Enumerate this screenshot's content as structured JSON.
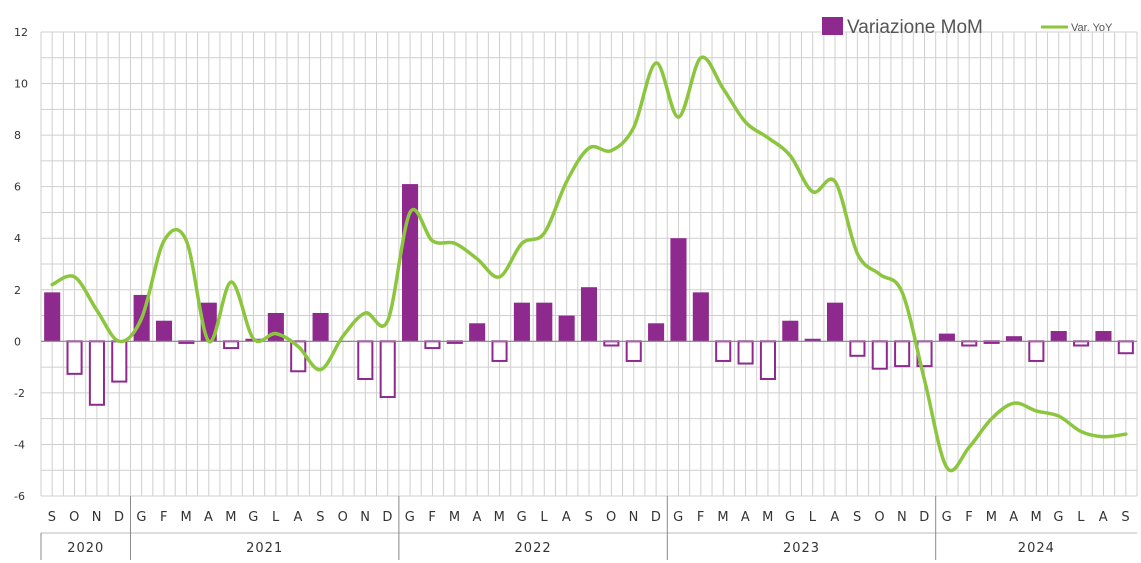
{
  "chart_data": {
    "type": "bar",
    "ylim": [
      -6,
      12
    ],
    "yticks": [
      12,
      10,
      8,
      6,
      4,
      2,
      0,
      -2,
      -4,
      -6
    ],
    "grid": true,
    "legend_position": "top-right",
    "categories": [
      "S",
      "O",
      "N",
      "D",
      "G",
      "F",
      "M",
      "A",
      "M",
      "G",
      "L",
      "A",
      "S",
      "O",
      "N",
      "D",
      "G",
      "F",
      "M",
      "A",
      "M",
      "G",
      "L",
      "A",
      "S",
      "O",
      "N",
      "D",
      "G",
      "F",
      "M",
      "A",
      "M",
      "G",
      "L",
      "A",
      "S",
      "O",
      "N",
      "D",
      "G",
      "F",
      "M",
      "A",
      "M",
      "G",
      "L",
      "A",
      "S"
    ],
    "years": [
      {
        "label": "2020",
        "count": 4
      },
      {
        "label": "2021",
        "count": 12
      },
      {
        "label": "2022",
        "count": 12
      },
      {
        "label": "2023",
        "count": 12
      },
      {
        "label": "2024",
        "count": 9
      }
    ],
    "series": [
      {
        "name": "Variazione MoM",
        "type": "bar",
        "color": "#8e2a8e",
        "values": [
          1.9,
          -1.3,
          -2.5,
          -1.6,
          1.8,
          0.8,
          -0.1,
          1.5,
          -0.3,
          0.1,
          1.1,
          -1.2,
          1.1,
          0.0,
          -1.5,
          -2.2,
          6.1,
          -0.3,
          -0.1,
          0.7,
          -0.8,
          1.5,
          1.5,
          1.0,
          2.1,
          -0.2,
          -0.8,
          0.7,
          4.0,
          1.9,
          -0.8,
          -0.9,
          -1.5,
          0.8,
          0.1,
          1.5,
          -0.6,
          -1.1,
          -1.0,
          -1.0,
          0.3,
          -0.2,
          -0.1,
          0.2,
          -0.8,
          0.4,
          -0.2,
          0.4,
          -0.5
        ]
      },
      {
        "name": "Var. YoY",
        "type": "line",
        "color": "#8cc63f",
        "values": [
          2.2,
          2.5,
          1.2,
          0.0,
          0.9,
          3.9,
          3.9,
          0.0,
          2.3,
          0.1,
          0.3,
          -0.2,
          -1.1,
          0.2,
          1.1,
          0.8,
          5.0,
          3.9,
          3.8,
          3.2,
          2.5,
          3.8,
          4.2,
          6.2,
          7.5,
          7.4,
          8.3,
          10.8,
          8.7,
          11.0,
          9.8,
          8.5,
          7.9,
          7.2,
          5.8,
          6.2,
          3.4,
          2.6,
          1.9,
          -1.5,
          -4.9,
          -4.1,
          -3.0,
          -2.4,
          -2.7,
          -2.9,
          -3.5,
          -3.7,
          -3.6
        ]
      }
    ]
  }
}
